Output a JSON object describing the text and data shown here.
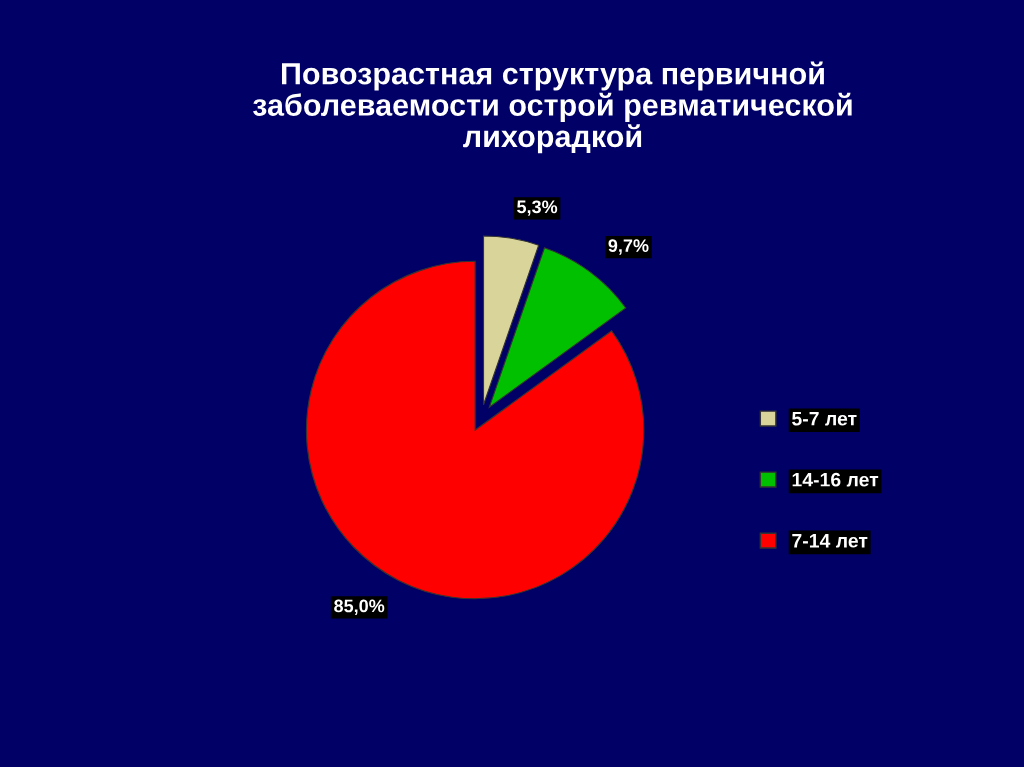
{
  "chart_data": {
    "type": "pie",
    "title": "Повозрастная структура первичной\nзаболеваемости острой ревматической\nлихорадкой",
    "categories": [
      "5-7 лет",
      "14-16 лет",
      "7-14 лет"
    ],
    "values": [
      5.3,
      9.7,
      85.0
    ],
    "colors": [
      "#d8d49a",
      "#00c000",
      "#ff0000"
    ],
    "value_labels": [
      "5,3%",
      "9,7%",
      "85,0%"
    ],
    "legend": "right"
  }
}
